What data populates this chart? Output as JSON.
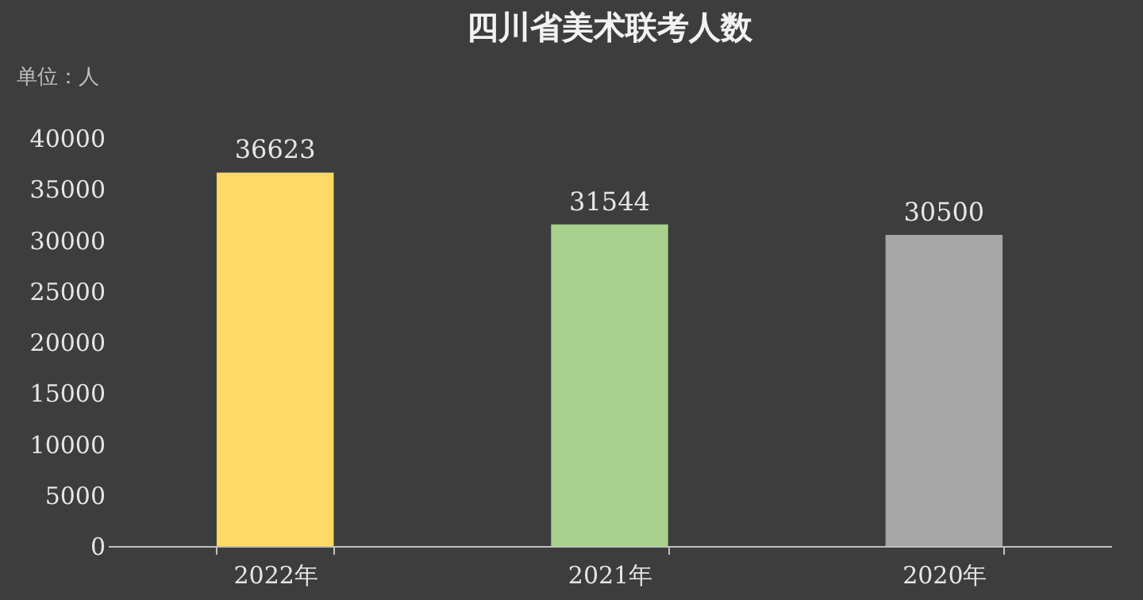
{
  "chart_data": {
    "type": "bar",
    "title": "四川省美术联考人数",
    "ylabel": "单位：人",
    "categories": [
      "2022年",
      "2021年",
      "2020年"
    ],
    "values": [
      36623,
      31544,
      30500
    ],
    "colors": [
      "#ffd966",
      "#a9d18e",
      "#a6a6a6"
    ],
    "ylim": [
      0,
      40000
    ],
    "yticks": [
      0,
      5000,
      10000,
      15000,
      20000,
      25000,
      30000,
      35000,
      40000
    ],
    "data_labels": true,
    "grid": false
  }
}
